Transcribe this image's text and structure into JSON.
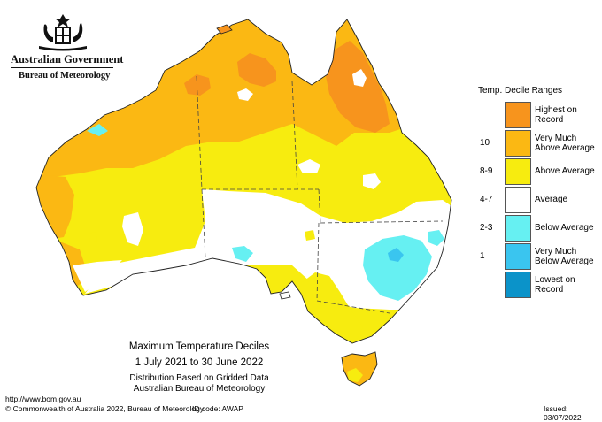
{
  "branding": {
    "government": "Australian Government",
    "bureau": "Bureau of Meteorology"
  },
  "map": {
    "title": "Maximum Temperature Deciles",
    "date_range": "1 July 2021 to 30 June 2022",
    "note_line1": "Distribution Based on Gridded Data",
    "note_line2": "Australian Bureau of Meteorology"
  },
  "legend": {
    "title": "Temp. Decile Ranges",
    "items": [
      {
        "code": "",
        "label_line1": "Highest on",
        "label_line2": "Record",
        "color": "#f7941d"
      },
      {
        "code": "10",
        "label_line1": "Very Much",
        "label_line2": "Above Average",
        "color": "#fbb813"
      },
      {
        "code": "8-9",
        "label_line1": "Above Average",
        "label_line2": "",
        "color": "#f7ec0f"
      },
      {
        "code": "4-7",
        "label_line1": "Average",
        "label_line2": "",
        "color": "#ffffff"
      },
      {
        "code": "2-3",
        "label_line1": "Below Average",
        "label_line2": "",
        "color": "#66f0f2"
      },
      {
        "code": "1",
        "label_line1": "Very Much",
        "label_line2": "Below Average",
        "color": "#3ac5ef"
      },
      {
        "code": "",
        "label_line1": "Lowest on",
        "label_line2": "Record",
        "color": "#0b93c9"
      }
    ]
  },
  "footer": {
    "url": "http://www.bom.gov.au",
    "copyright": "© Commonwealth of Australia 2022, Bureau of Meteorology",
    "id_code": "ID code: AWAP",
    "issued": "Issued: 03/07/2022"
  }
}
